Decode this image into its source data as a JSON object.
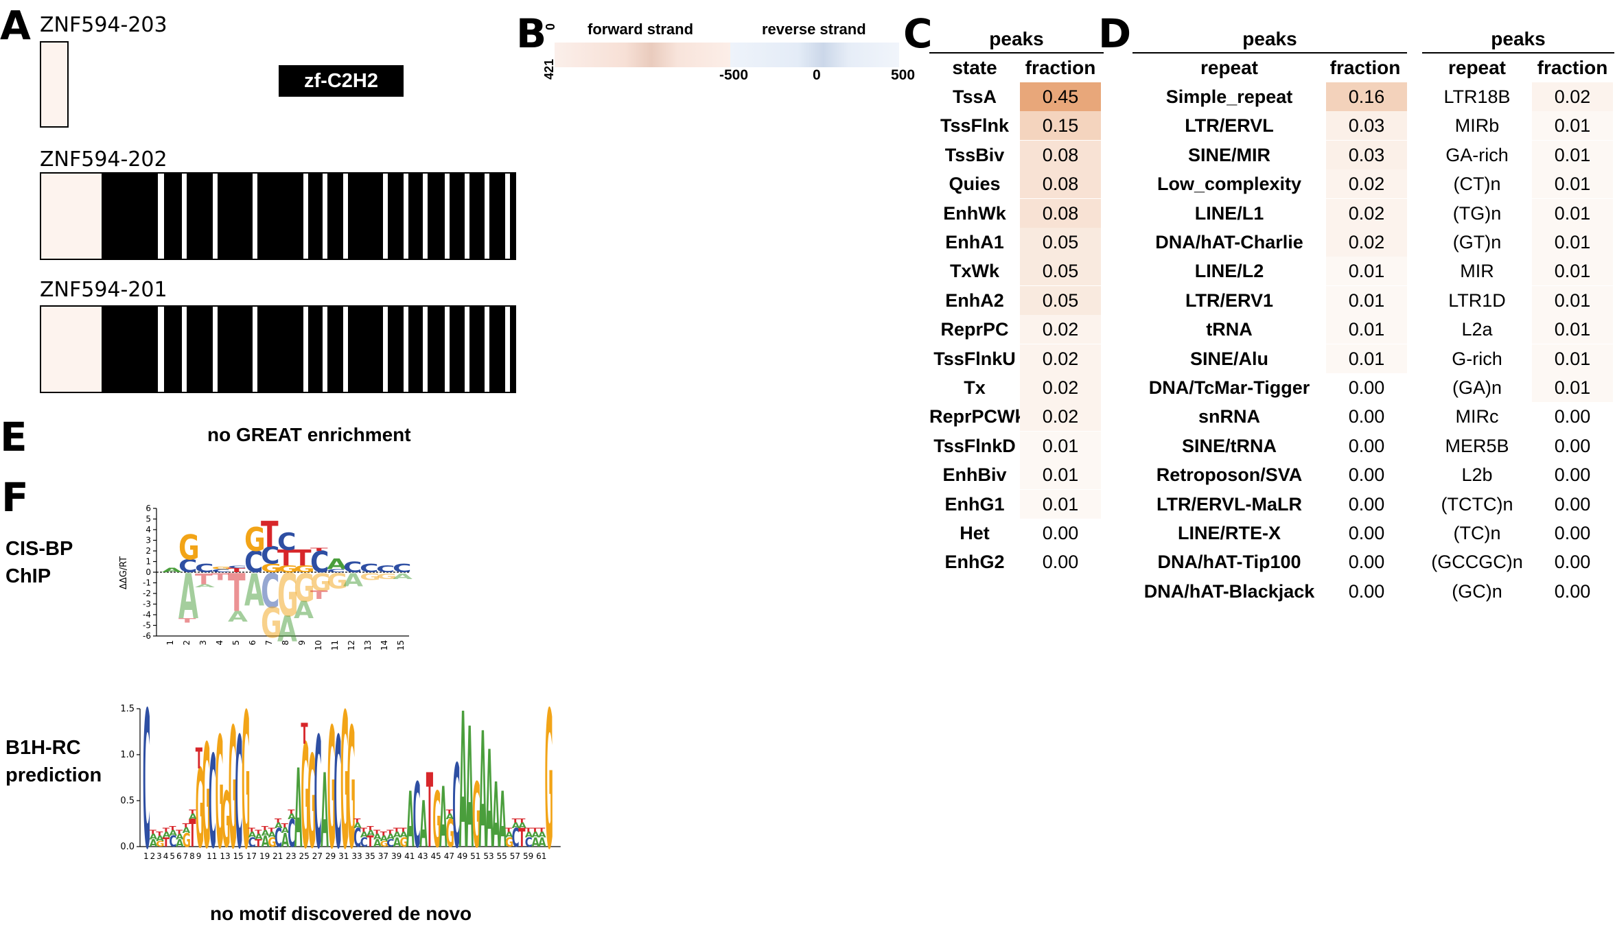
{
  "panels": {
    "a": "A",
    "b": "B",
    "c": "C",
    "d": "D",
    "e": "E",
    "f": "F"
  },
  "panel_a": {
    "isoforms": [
      {
        "name": "ZNF594-203"
      },
      {
        "name": "ZNF594-202"
      },
      {
        "name": "ZNF594-201"
      }
    ],
    "domain_legend": "zf-C2H2",
    "domain_color": "#000000",
    "non_domain_color": "#fdf3ee"
  },
  "panel_b": {
    "forward_label": "forward strand",
    "reverse_label": "reverse strand",
    "y_top": "0",
    "y_bottom": "421",
    "x_ticks": [
      "-500",
      "0",
      "500"
    ],
    "forward_color": "#e8b9a8",
    "reverse_color": "#b9cde8"
  },
  "panel_c": {
    "group_header": "peaks",
    "col_state": "state",
    "col_fraction": "fraction",
    "heat_color": "#e8a77a",
    "rows": [
      {
        "state": "TssA",
        "fraction": "0.45",
        "v": 0.45
      },
      {
        "state": "TssFlnk",
        "fraction": "0.15",
        "v": 0.15
      },
      {
        "state": "TssBiv",
        "fraction": "0.08",
        "v": 0.08
      },
      {
        "state": "Quies",
        "fraction": "0.08",
        "v": 0.08
      },
      {
        "state": "EnhWk",
        "fraction": "0.08",
        "v": 0.08
      },
      {
        "state": "EnhA1",
        "fraction": "0.05",
        "v": 0.05
      },
      {
        "state": "TxWk",
        "fraction": "0.05",
        "v": 0.05
      },
      {
        "state": "EnhA2",
        "fraction": "0.05",
        "v": 0.05
      },
      {
        "state": "ReprPC",
        "fraction": "0.02",
        "v": 0.02
      },
      {
        "state": "TssFlnkU",
        "fraction": "0.02",
        "v": 0.02
      },
      {
        "state": "Tx",
        "fraction": "0.02",
        "v": 0.02
      },
      {
        "state": "ReprPCWk",
        "fraction": "0.02",
        "v": 0.02
      },
      {
        "state": "TssFlnkD",
        "fraction": "0.01",
        "v": 0.01
      },
      {
        "state": "EnhBiv",
        "fraction": "0.01",
        "v": 0.01
      },
      {
        "state": "EnhG1",
        "fraction": "0.01",
        "v": 0.01
      },
      {
        "state": "Het",
        "fraction": "0.00",
        "v": 0.0
      },
      {
        "state": "EnhG2",
        "fraction": "0.00",
        "v": 0.0
      }
    ]
  },
  "panel_d": {
    "group_header": "peaks",
    "col_repeat": "repeat",
    "col_fraction": "fraction",
    "families": [
      {
        "repeat": "Simple_repeat",
        "fraction": "0.16",
        "v": 0.16
      },
      {
        "repeat": "LTR/ERVL",
        "fraction": "0.03",
        "v": 0.03
      },
      {
        "repeat": "SINE/MIR",
        "fraction": "0.03",
        "v": 0.03
      },
      {
        "repeat": "Low_complexity",
        "fraction": "0.02",
        "v": 0.02
      },
      {
        "repeat": "LINE/L1",
        "fraction": "0.02",
        "v": 0.02
      },
      {
        "repeat": "DNA/hAT-Charlie",
        "fraction": "0.02",
        "v": 0.02
      },
      {
        "repeat": "LINE/L2",
        "fraction": "0.01",
        "v": 0.01
      },
      {
        "repeat": "LTR/ERV1",
        "fraction": "0.01",
        "v": 0.01
      },
      {
        "repeat": "tRNA",
        "fraction": "0.01",
        "v": 0.01
      },
      {
        "repeat": "SINE/Alu",
        "fraction": "0.01",
        "v": 0.01
      },
      {
        "repeat": "DNA/TcMar-Tigger",
        "fraction": "0.00",
        "v": 0.0
      },
      {
        "repeat": "snRNA",
        "fraction": "0.00",
        "v": 0.0
      },
      {
        "repeat": "SINE/tRNA",
        "fraction": "0.00",
        "v": 0.0
      },
      {
        "repeat": "Retroposon/SVA",
        "fraction": "0.00",
        "v": 0.0
      },
      {
        "repeat": "LTR/ERVL-MaLR",
        "fraction": "0.00",
        "v": 0.0
      },
      {
        "repeat": "LINE/RTE-X",
        "fraction": "0.00",
        "v": 0.0
      },
      {
        "repeat": "DNA/hAT-Tip100",
        "fraction": "0.00",
        "v": 0.0
      },
      {
        "repeat": "DNA/hAT-Blackjack",
        "fraction": "0.00",
        "v": 0.0
      }
    ],
    "subfamilies": [
      {
        "repeat": "LTR18B",
        "fraction": "0.02",
        "v": 0.02
      },
      {
        "repeat": "MIRb",
        "fraction": "0.01",
        "v": 0.01
      },
      {
        "repeat": "GA-rich",
        "fraction": "0.01",
        "v": 0.01
      },
      {
        "repeat": "(CT)n",
        "fraction": "0.01",
        "v": 0.01
      },
      {
        "repeat": "(TG)n",
        "fraction": "0.01",
        "v": 0.01
      },
      {
        "repeat": "(GT)n",
        "fraction": "0.01",
        "v": 0.01
      },
      {
        "repeat": "MIR",
        "fraction": "0.01",
        "v": 0.01
      },
      {
        "repeat": "LTR1D",
        "fraction": "0.01",
        "v": 0.01
      },
      {
        "repeat": "L2a",
        "fraction": "0.01",
        "v": 0.01
      },
      {
        "repeat": "G-rich",
        "fraction": "0.01",
        "v": 0.01
      },
      {
        "repeat": "(GA)n",
        "fraction": "0.01",
        "v": 0.01
      },
      {
        "repeat": "MIRc",
        "fraction": "0.00",
        "v": 0.0
      },
      {
        "repeat": "MER5B",
        "fraction": "0.00",
        "v": 0.0
      },
      {
        "repeat": "L2b",
        "fraction": "0.00",
        "v": 0.0
      },
      {
        "repeat": "(TCTC)n",
        "fraction": "0.00",
        "v": 0.0
      },
      {
        "repeat": "(TC)n",
        "fraction": "0.00",
        "v": 0.0
      },
      {
        "repeat": "(GCCGC)n",
        "fraction": "0.00",
        "v": 0.0
      },
      {
        "repeat": "(GC)n",
        "fraction": "0.00",
        "v": 0.0
      }
    ]
  },
  "panel_e": {
    "note": "no GREAT enrichment"
  },
  "panel_f": {
    "cisbp_label": "CIS-BP ChIP",
    "b1h_label": "B1H-RC prediction",
    "denovo_note": "no motif discovered de novo",
    "logo1_ylabel": "ΔΔG/RT",
    "logo1_yticks": [
      "6",
      "5",
      "4",
      "3",
      "2",
      "1",
      "0",
      "-1",
      "-2",
      "-3",
      "-4",
      "-5",
      "-6"
    ],
    "logo1_xticks": [
      "1",
      "2",
      "3",
      "4",
      "5",
      "6",
      "7",
      "8",
      "9",
      "10",
      "11",
      "12",
      "13",
      "14",
      "15"
    ],
    "logo2_yticks": [
      "1.5",
      "1.0",
      "0.5",
      "0.0"
    ],
    "base_colors": {
      "A": "#4a9e3c",
      "C": "#2e4fa3",
      "G": "#f2a417",
      "T": "#d7262a"
    }
  }
}
